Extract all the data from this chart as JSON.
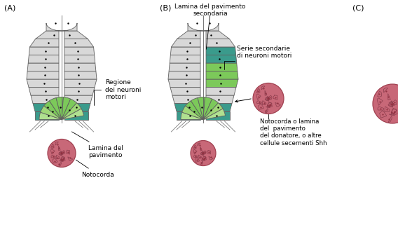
{
  "bg_color": "#ffffff",
  "c_gray": "#d8d8d8",
  "c_teal": "#3a9b8c",
  "c_green": "#7cc95a",
  "c_green_light": "#b0e090",
  "c_notch_fill": "#c86878",
  "c_notch_edge": "#a04050",
  "c_notch_cell": "#903040",
  "c_out": "#606060",
  "lw": 0.6,
  "label_A": "(A)",
  "label_B": "(B)",
  "label_C": "(C)",
  "label_regione": "Regione\ndei neuroni\nmotori",
  "label_lamina_pav": "Lamina del\npavimento",
  "label_notocorda_A": "Notocorda",
  "label_lamina_sec": "Lamina del pavimento\nsecondaria",
  "label_serie_sec": "Serie secondarie\ndi neuroni motori",
  "label_notocorda_B": "Notocorda o lamina\ndel  pavimento\ndel donatore, o altre\ncellule secernenti Shh"
}
